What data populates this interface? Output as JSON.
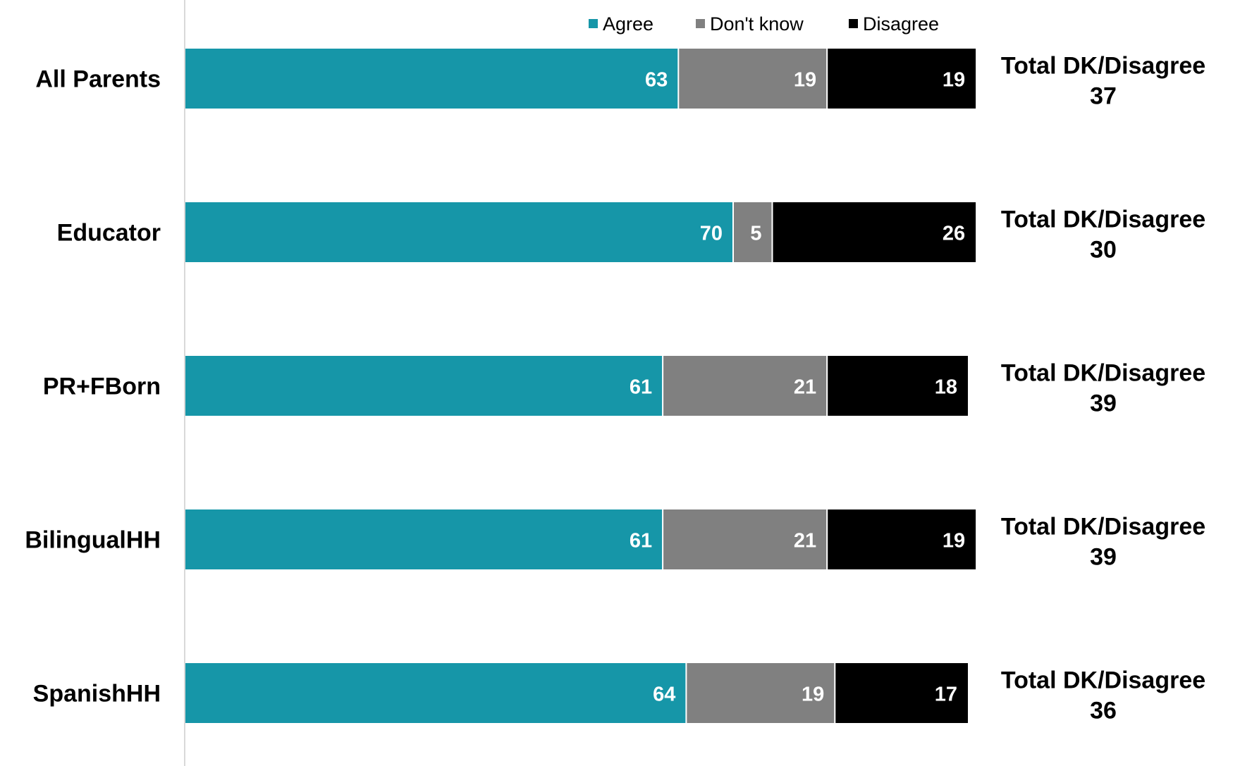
{
  "chart_data": {
    "type": "bar",
    "orientation": "horizontal",
    "stacked": true,
    "categories": [
      "All Parents",
      "Educator",
      "PR+FBorn",
      "BilingualHH",
      "SpanishHH"
    ],
    "series": [
      {
        "name": "Agree",
        "color": "#1696a8",
        "values": [
          63,
          70,
          61,
          61,
          64
        ]
      },
      {
        "name": "Don't know",
        "color": "#808080",
        "values": [
          19,
          5,
          21,
          21,
          19
        ]
      },
      {
        "name": "Disagree",
        "color": "#000000",
        "values": [
          19,
          26,
          18,
          19,
          17
        ]
      }
    ],
    "totals": {
      "label": "Total DK/Disagree",
      "values": [
        37,
        30,
        39,
        39,
        36
      ]
    },
    "legend_position": "top",
    "grid": false
  }
}
